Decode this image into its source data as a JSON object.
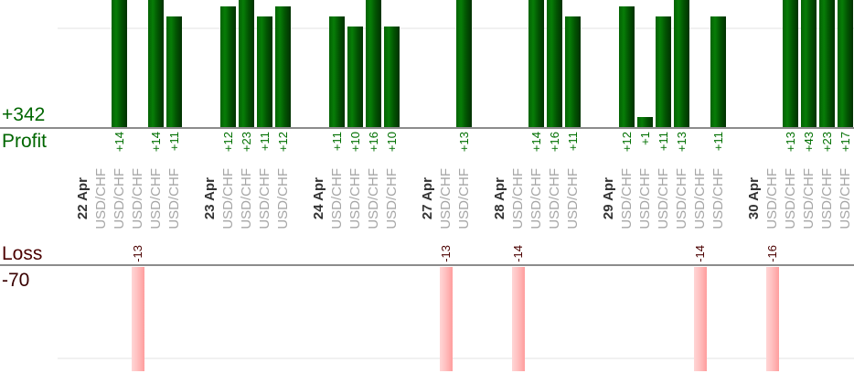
{
  "summary": {
    "profit_total": "+342",
    "profit_axis_label": "Profit",
    "loss_axis_label": "Loss",
    "loss_total": "-70"
  },
  "colors": {
    "profit_bar": "#067806",
    "profit_bar_dark": "#013101",
    "loss_bar": "#ff9d9d",
    "loss_bar_light": "#ffd6d6",
    "profit_text": "#007000",
    "summary_profit_text": "#006600",
    "loss_text": "#4b0000",
    "date_text": "#333333",
    "symbol_text": "#a6a6a6",
    "axis_line": "#8c8c8c",
    "gridline": "#f1f1f1"
  },
  "chart_data": {
    "type": "bar",
    "orientation": "vertical",
    "legend_position": "left",
    "grid": true,
    "profit_total": 342,
    "loss_total": -70,
    "axis_ranges": {
      "profit_visible": [
        0,
        13
      ],
      "loss_visible": [
        0,
        -16
      ]
    },
    "groups": [
      {
        "date": "22 Apr",
        "trades": [
          {
            "symbol": "USD/CHF",
            "value": 0,
            "label": ""
          },
          {
            "symbol": "USD/CHF",
            "value": 14,
            "label": "+14"
          },
          {
            "symbol": "USD/CHF",
            "value": -13,
            "label": "-13"
          },
          {
            "symbol": "USD/CHF",
            "value": 14,
            "label": "+14"
          },
          {
            "symbol": "USD/CHF",
            "value": 11,
            "label": "+11"
          }
        ]
      },
      {
        "date": "23 Apr",
        "trades": [
          {
            "symbol": "USD/CHF",
            "value": 12,
            "label": "+12"
          },
          {
            "symbol": "USD/CHF",
            "value": 23,
            "label": "+23"
          },
          {
            "symbol": "USD/CHF",
            "value": 11,
            "label": "+11"
          },
          {
            "symbol": "USD/CHF",
            "value": 12,
            "label": "+12"
          }
        ]
      },
      {
        "date": "24 Apr",
        "trades": [
          {
            "symbol": "USD/CHF",
            "value": 11,
            "label": "+11"
          },
          {
            "symbol": "USD/CHF",
            "value": 10,
            "label": "+10"
          },
          {
            "symbol": "USD/CHF",
            "value": 16,
            "label": "+16"
          },
          {
            "symbol": "USD/CHF",
            "value": 10,
            "label": "+10"
          }
        ]
      },
      {
        "date": "27 Apr",
        "trades": [
          {
            "symbol": "USD/CHF",
            "value": -13,
            "label": "-13"
          },
          {
            "symbol": "USD/CHF",
            "value": 13,
            "label": "+13"
          }
        ]
      },
      {
        "date": "28 Apr",
        "trades": [
          {
            "symbol": "USD/CHF",
            "value": -14,
            "label": "-14"
          },
          {
            "symbol": "USD/CHF",
            "value": 14,
            "label": "+14"
          },
          {
            "symbol": "USD/CHF",
            "value": 16,
            "label": "+16"
          },
          {
            "symbol": "USD/CHF",
            "value": 11,
            "label": "+11"
          }
        ]
      },
      {
        "date": "29 Apr",
        "trades": [
          {
            "symbol": "USD/CHF",
            "value": 12,
            "label": "+12"
          },
          {
            "symbol": "USD/CHF",
            "value": 1,
            "label": "+1"
          },
          {
            "symbol": "USD/CHF",
            "value": 11,
            "label": "+11"
          },
          {
            "symbol": "USD/CHF",
            "value": 13,
            "label": "+13"
          },
          {
            "symbol": "USD/CHF",
            "value": -14,
            "label": "-14"
          },
          {
            "symbol": "USD/CHF",
            "value": 11,
            "label": "+11"
          }
        ]
      },
      {
        "date": "30 Apr",
        "trades": [
          {
            "symbol": "USD/CHF",
            "value": -16,
            "label": "-16"
          },
          {
            "symbol": "USD/CHF",
            "value": 13,
            "label": "+13"
          },
          {
            "symbol": "USD/CHF",
            "value": 43,
            "label": "+43"
          },
          {
            "symbol": "USD/CHF",
            "value": 23,
            "label": "+23"
          },
          {
            "symbol": "USD/CHF",
            "value": 17,
            "label": "+17"
          }
        ]
      }
    ]
  }
}
